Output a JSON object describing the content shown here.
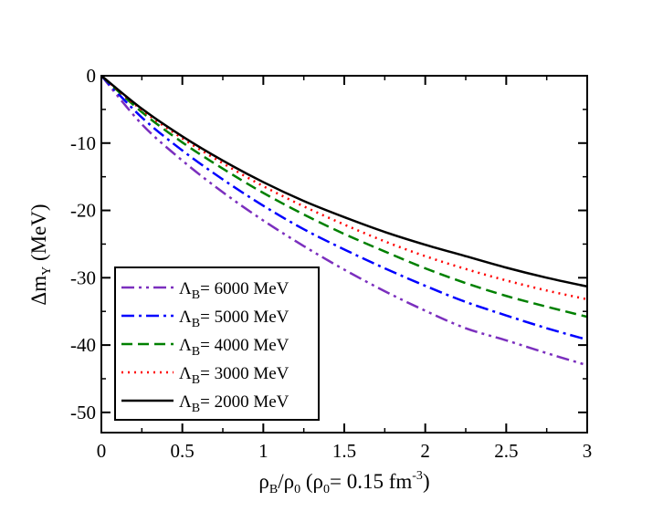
{
  "chart_data": {
    "type": "line",
    "title": "",
    "xlabel": {
      "main": "ρ",
      "sub_b": "B",
      "slash": "/ρ",
      "sub_0": "0",
      "paren_open": "(ρ",
      "paren_sub": "0",
      "paren_eq": "= 0.15 fm",
      "paren_sup": "-3",
      "paren_close": ")"
    },
    "ylabel": {
      "main": "Δm",
      "sub": "Y",
      "unit": "(MeV)"
    },
    "xlim": [
      0,
      3
    ],
    "ylim": [
      -53,
      0
    ],
    "x_ticks": [
      0,
      0.5,
      1,
      1.5,
      2,
      2.5,
      3
    ],
    "x_tick_labels": [
      "0",
      "0.5",
      "1",
      "1.5",
      "2",
      "2.5",
      "3"
    ],
    "y_ticks": [
      0,
      -10,
      -20,
      -30,
      -40,
      -50
    ],
    "y_tick_labels": [
      "0",
      "-10",
      "-20",
      "-30",
      "-40",
      "-50"
    ],
    "x": [
      0,
      0.25,
      0.5,
      0.75,
      1.0,
      1.25,
      1.5,
      1.75,
      2.0,
      2.25,
      2.5,
      2.75,
      3.0
    ],
    "series": [
      {
        "name": "6000 MeV",
        "label_prefix": "Λ",
        "label_sub": "B",
        "label_rest": "= 6000 MeV",
        "color": "#7b2fbe",
        "dash": "dashdotdot",
        "values": [
          0,
          -7.2,
          -12.6,
          -17.3,
          -21.5,
          -25.3,
          -28.8,
          -32.0,
          -34.9,
          -37.5,
          -39.3,
          -41.2,
          -43.0
        ]
      },
      {
        "name": "5000 MeV",
        "label_prefix": "Λ",
        "label_sub": "B",
        "label_rest": "= 5000 MeV",
        "color": "#0000ff",
        "dash": "dashdot",
        "values": [
          0,
          -6.2,
          -11.1,
          -15.4,
          -19.3,
          -22.8,
          -25.8,
          -28.6,
          -31.2,
          -33.6,
          -35.6,
          -37.5,
          -39.2
        ]
      },
      {
        "name": "4000 MeV",
        "label_prefix": "Λ",
        "label_sub": "B",
        "label_rest": "= 4000 MeV",
        "color": "#008000",
        "dash": "dashed",
        "values": [
          0,
          -5.4,
          -9.9,
          -13.8,
          -17.4,
          -20.6,
          -23.5,
          -26.1,
          -28.6,
          -30.8,
          -32.7,
          -34.3,
          -35.8
        ]
      },
      {
        "name": "3000 MeV",
        "label_prefix": "Λ",
        "label_sub": "B",
        "label_rest": "= 3000 MeV",
        "color": "#ff0000",
        "dash": "dotted",
        "values": [
          0,
          -5.1,
          -9.3,
          -13.0,
          -16.4,
          -19.4,
          -22.1,
          -24.6,
          -26.8,
          -28.7,
          -30.4,
          -31.9,
          -33.2
        ]
      },
      {
        "name": "2000 MeV",
        "label_prefix": "Λ",
        "label_sub": "B",
        "label_rest": "= 2000 MeV",
        "color": "#000000",
        "dash": "solid",
        "values": [
          0,
          -4.9,
          -9.0,
          -12.6,
          -15.8,
          -18.6,
          -21.0,
          -23.2,
          -25.1,
          -26.8,
          -28.5,
          -30.0,
          -31.3
        ]
      }
    ],
    "legend_position": "lower-left",
    "grid": false
  }
}
